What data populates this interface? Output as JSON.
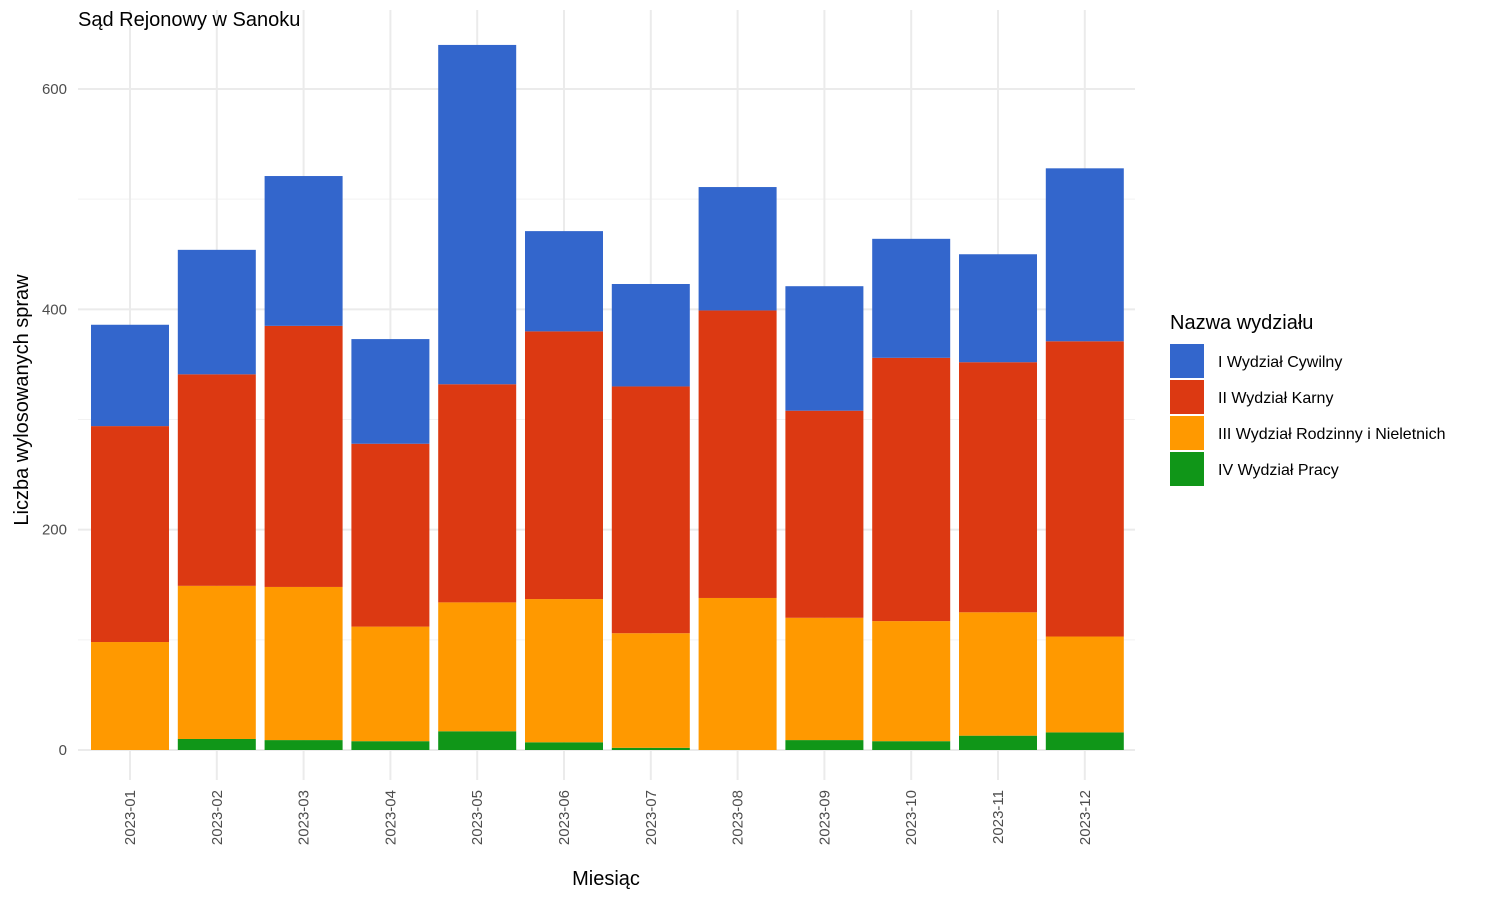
{
  "chart_data": {
    "type": "bar",
    "stacked": true,
    "title": "Sąd Rejonowy w Sanoku",
    "xlabel": "Miesiąc",
    "ylabel": "Liczba wylosowanych spraw",
    "ylim": [
      -25,
      675
    ],
    "yticks": [
      0,
      200,
      400,
      600
    ],
    "grid": true,
    "legend": {
      "title": "Nazwa wydziału",
      "position": "right"
    },
    "categories": [
      "2023-01",
      "2023-02",
      "2023-03",
      "2023-04",
      "2023-05",
      "2023-06",
      "2023-07",
      "2023-08",
      "2023-09",
      "2023-10",
      "2023-11",
      "2023-12"
    ],
    "series": [
      {
        "name": "IV Wydział Pracy",
        "color": "#109618",
        "values": [
          0,
          10,
          9,
          8,
          17,
          7,
          2,
          0,
          9,
          8,
          13,
          16
        ]
      },
      {
        "name": "III Wydział Rodzinny i Nieletnich",
        "color": "#FF9900",
        "values": [
          98,
          139,
          139,
          104,
          117,
          130,
          104,
          138,
          111,
          109,
          112,
          87
        ]
      },
      {
        "name": "II Wydział Karny",
        "color": "#DC3912",
        "values": [
          196,
          192,
          237,
          166,
          198,
          243,
          224,
          261,
          188,
          239,
          227,
          268
        ]
      },
      {
        "name": "I Wydział Cywilny",
        "color": "#3366CC",
        "values": [
          92,
          113,
          136,
          95,
          308,
          91,
          93,
          112,
          113,
          108,
          98,
          157
        ]
      }
    ],
    "legend_order": [
      "I Wydział Cywilny",
      "II Wydział Karny",
      "III Wydział Rodzinny i Nieletnich",
      "IV Wydział Pracy"
    ]
  }
}
